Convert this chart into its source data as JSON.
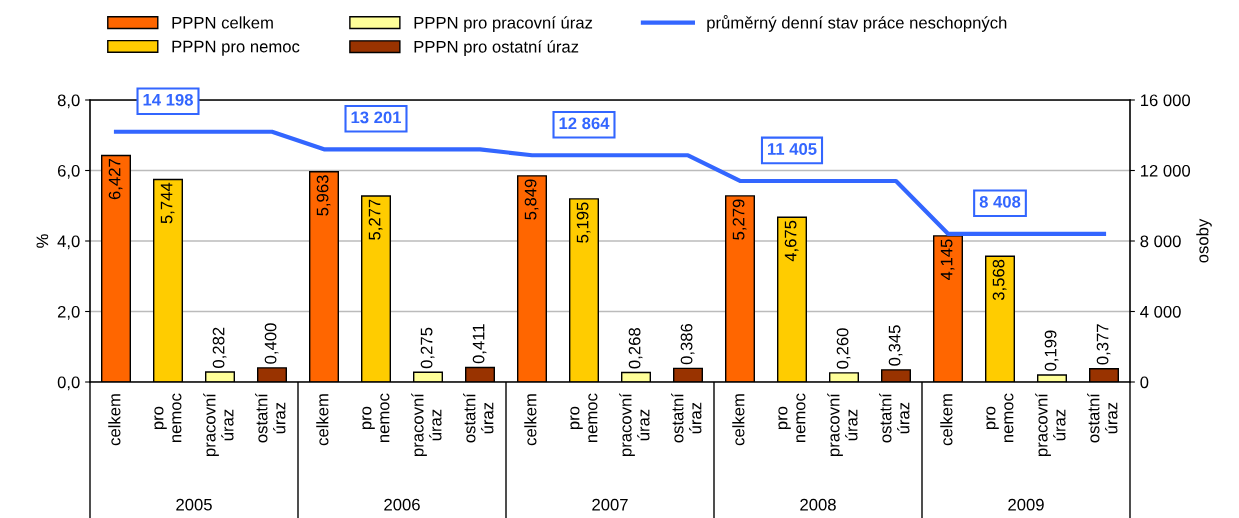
{
  "chart_data": {
    "type": "bar",
    "categories": [
      "celkem",
      "pro nemoc",
      "pracovní úraz",
      "ostatní úraz",
      "celkem",
      "pro nemoc",
      "pracovní úraz",
      "ostatní úraz",
      "celkem",
      "pro nemoc",
      "pracovní úraz",
      "ostatní úraz",
      "celkem",
      "pro nemoc",
      "pracovní úraz",
      "ostatní úraz",
      "celkem",
      "pro nemoc",
      "pracovní úraz",
      "ostatní úraz"
    ],
    "series": [
      {
        "name": "PPPN celkem",
        "color": "#ff6600",
        "values": [
          6.427,
          null,
          null,
          null,
          5.963,
          null,
          null,
          null,
          5.849,
          null,
          null,
          null,
          5.279,
          null,
          null,
          null,
          4.145,
          null,
          null,
          null
        ],
        "value_labels": [
          "6,427",
          null,
          null,
          null,
          "5,963",
          null,
          null,
          null,
          "5,849",
          null,
          null,
          null,
          "5,279",
          null,
          null,
          null,
          "4,145",
          null,
          null,
          null
        ]
      },
      {
        "name": "PPPN pro nemoc",
        "color": "#ffcc00",
        "values": [
          null,
          5.744,
          null,
          null,
          null,
          5.277,
          null,
          null,
          null,
          5.195,
          null,
          null,
          null,
          4.675,
          null,
          null,
          null,
          3.568,
          null,
          null
        ],
        "value_labels": [
          null,
          "5,744",
          null,
          null,
          null,
          "5,277",
          null,
          null,
          null,
          "5,195",
          null,
          null,
          null,
          "4,675",
          null,
          null,
          null,
          "3,568",
          null,
          null
        ]
      },
      {
        "name": "PPPN pro pracovní úraz",
        "color": "#ffff99",
        "values": [
          null,
          null,
          0.282,
          null,
          null,
          null,
          0.275,
          null,
          null,
          null,
          0.268,
          null,
          null,
          null,
          0.26,
          null,
          null,
          null,
          0.199,
          null
        ],
        "value_labels": [
          null,
          null,
          "0,282",
          null,
          null,
          null,
          "0,275",
          null,
          null,
          null,
          "0,268",
          null,
          null,
          null,
          "0,260",
          null,
          null,
          null,
          "0,199",
          null
        ]
      },
      {
        "name": "PPPN pro ostatní úraz",
        "color": "#993300",
        "values": [
          null,
          null,
          null,
          0.4,
          null,
          null,
          null,
          0.411,
          null,
          null,
          null,
          0.386,
          null,
          null,
          null,
          0.345,
          null,
          null,
          null,
          0.377
        ],
        "value_labels": [
          null,
          null,
          null,
          "0,400",
          null,
          null,
          null,
          "0,411",
          null,
          null,
          null,
          "0,386",
          null,
          null,
          null,
          "0,345",
          null,
          null,
          null,
          "0,377"
        ]
      },
      {
        "name": "průměrný denní stav práce neschopných",
        "type": "line",
        "axis": "y2",
        "color": "#3366ff",
        "marker": "none",
        "values": [
          14198,
          14198,
          14198,
          14198,
          13201,
          13201,
          13201,
          13201,
          12864,
          12864,
          12864,
          12864,
          11405,
          11405,
          11405,
          11405,
          8408,
          8408,
          8408,
          8408
        ],
        "value_labels": [
          null,
          "14 198",
          null,
          null,
          null,
          "13 201",
          null,
          null,
          null,
          "12 864",
          null,
          null,
          null,
          "11 405",
          null,
          null,
          null,
          "8 408",
          null,
          null
        ]
      }
    ],
    "ylabel": "%",
    "y2label": "osoby",
    "ylim": [
      0,
      8
    ],
    "yticks": [
      {
        "value": 0,
        "label": "0,0"
      },
      {
        "value": 2,
        "label": "2,0"
      },
      {
        "value": 4,
        "label": "4,0"
      },
      {
        "value": 6,
        "label": "6,0"
      },
      {
        "value": 8,
        "label": "8,0"
      }
    ],
    "y2lim": [
      0,
      16000
    ],
    "y2ticks": [
      0,
      {
        "value": 4000,
        "label": "4 000"
      },
      {
        "value": 8000,
        "label": "8 000"
      },
      {
        "value": 12000,
        "label": "12 000"
      },
      {
        "value": 16000,
        "label": "16 000"
      }
    ],
    "annotations": [
      "2005",
      "2006",
      "2007",
      "2008",
      "2009"
    ],
    "grid": "y",
    "legend": "top"
  }
}
